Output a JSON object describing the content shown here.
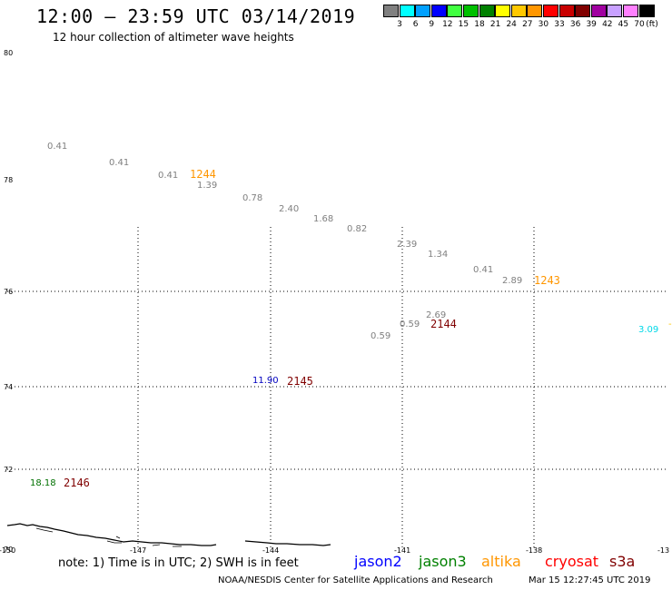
{
  "header": {
    "title": "12:00 – 23:59 UTC 03/14/2019",
    "subtitle": "12 hour collection of altimeter wave heights"
  },
  "legend": {
    "unit": "(ft)",
    "items": [
      {
        "label": "3",
        "color": "#808080"
      },
      {
        "label": "6",
        "color": "#00ffff"
      },
      {
        "label": "9",
        "color": "#00a0ff"
      },
      {
        "label": "12",
        "color": "#0000ff"
      },
      {
        "label": "15",
        "color": "#40ff40"
      },
      {
        "label": "18",
        "color": "#00c000"
      },
      {
        "label": "21",
        "color": "#008000"
      },
      {
        "label": "24",
        "color": "#ffff00"
      },
      {
        "label": "27",
        "color": "#ffc800"
      },
      {
        "label": "30",
        "color": "#ff9600"
      },
      {
        "label": "33",
        "color": "#ff0000"
      },
      {
        "label": "36",
        "color": "#c80000"
      },
      {
        "label": "39",
        "color": "#800000"
      },
      {
        "label": "42",
        "color": "#a000a0"
      },
      {
        "label": "45",
        "color": "#c8a0ff"
      },
      {
        "label": "70",
        "color": "#ff80ff"
      },
      {
        "label": "",
        "color": "#000000"
      }
    ]
  },
  "map": {
    "lat_range": [
      70,
      80
    ],
    "lon_range": [
      -150,
      -135
    ],
    "lat_ticks": [
      "80",
      "78",
      "76",
      "74",
      "72",
      "70"
    ],
    "lon_ticks": [
      "-150",
      "-147",
      "-144",
      "-141",
      "-138",
      "-13"
    ]
  },
  "measurements": [
    {
      "text": "0.41",
      "color": "#808080"
    },
    {
      "text": "0.41",
      "color": "#808080"
    },
    {
      "text": "0.41",
      "color": "#808080"
    },
    {
      "text": "1.39",
      "color": "#808080"
    },
    {
      "text": "0.78",
      "color": "#808080"
    },
    {
      "text": "2.40",
      "color": "#808080"
    },
    {
      "text": "1.68",
      "color": "#808080"
    },
    {
      "text": "0.82",
      "color": "#808080"
    },
    {
      "text": "2.39",
      "color": "#808080"
    },
    {
      "text": "1.34",
      "color": "#808080"
    },
    {
      "text": "0.41",
      "color": "#808080"
    },
    {
      "text": "2.89",
      "color": "#808080"
    },
    {
      "text": "2.69",
      "color": "#808080"
    },
    {
      "text": "0.59",
      "color": "#808080"
    },
    {
      "text": "0.59",
      "color": "#808080"
    },
    {
      "text": "3.09",
      "color": "#00d8e8"
    },
    {
      "text": "11.90",
      "color": "#0000c0"
    },
    {
      "text": "18.18",
      "color": "#007000"
    }
  ],
  "passes": [
    {
      "text": "1244",
      "color": "#ff9600"
    },
    {
      "text": "1243",
      "color": "#ff9600"
    },
    {
      "text": "2144",
      "color": "#800000"
    },
    {
      "text": "2145",
      "color": "#800000"
    },
    {
      "text": "2146",
      "color": "#800000"
    }
  ],
  "footer": {
    "note": "note: 1) Time is in UTC; 2) SWH is in feet",
    "satellites": [
      {
        "name": "jason2",
        "color": "#0000ff"
      },
      {
        "name": "jason3",
        "color": "#008000"
      },
      {
        "name": "altika",
        "color": "#ff9600"
      },
      {
        "name": "cryosat",
        "color": "#ff0000"
      },
      {
        "name": "s3a",
        "color": "#800000"
      }
    ],
    "credit": "NOAA/NESDIS Center for Satellite Applications and Research",
    "generated": "Mar 15 12:27:45 UTC 2019"
  }
}
